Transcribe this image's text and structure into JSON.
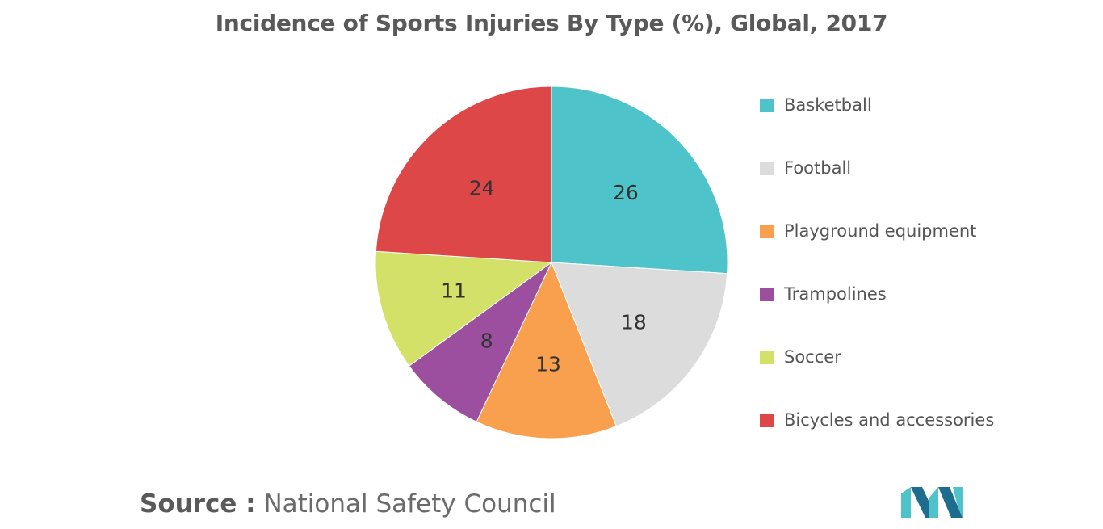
{
  "colors": {
    "basketball": "#4fc3ca",
    "football": "#dcdcdc",
    "playground": "#f8a04d",
    "trampolines": "#9b4f9e",
    "soccer": "#d4e168",
    "bicycles": "#dd4747",
    "logo_light": "#4fc3ca",
    "logo_dark": "#1e6c8e"
  },
  "chart_data": {
    "type": "pie",
    "title": "Incidence of Sports Injuries By Type (%), Global, 2017",
    "categories": [
      "Basketball",
      "Football",
      "Playground equipment",
      "Trampolines",
      "Soccer",
      "Bicycles and accessories"
    ],
    "values": [
      26,
      18,
      13,
      8,
      11,
      24
    ],
    "data_labels": [
      "26",
      "18",
      "13",
      "8",
      "11",
      "24"
    ],
    "legend_position": "right",
    "start_angle": "12 o'clock",
    "direction": "clockwise"
  },
  "source": {
    "prefix": "Source :",
    "text": "National Safety Council"
  },
  "logo": {
    "icon": "mordor-intelligence-logo-icon"
  }
}
